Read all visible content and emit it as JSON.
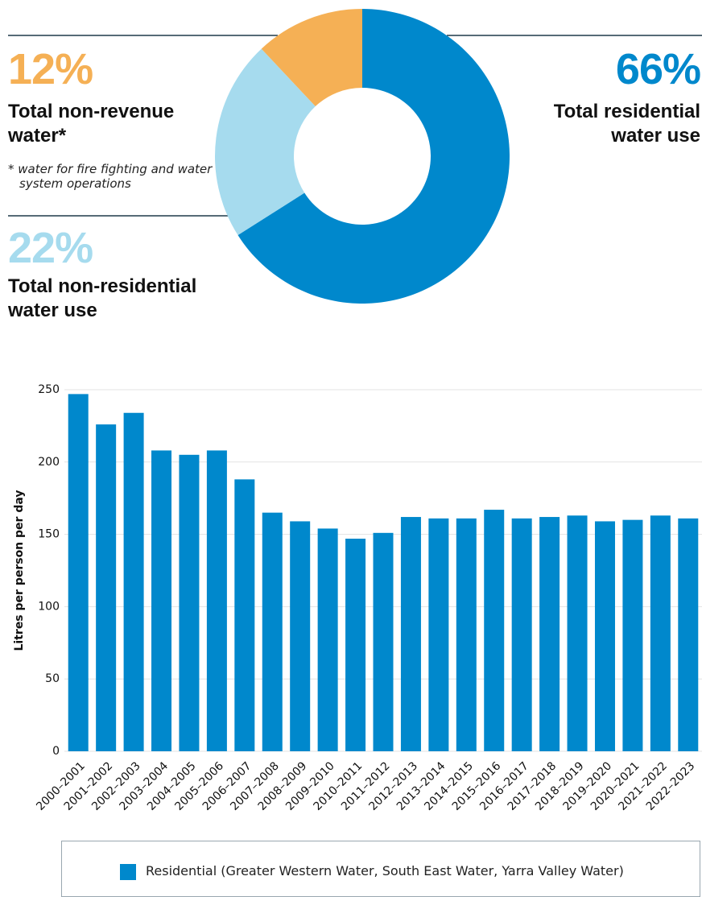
{
  "chart_data": [
    {
      "type": "donut",
      "categories": [
        "Total residential water use",
        "Total non-residential water use",
        "Total non-revenue water*"
      ],
      "values": [
        66,
        22,
        12
      ],
      "value_labels": [
        "66%",
        "22%",
        "12%"
      ],
      "colors": [
        "#0088cc",
        "#a6dbee",
        "#f5b055"
      ],
      "annotation": "* water for fire fighting and water system operations"
    },
    {
      "type": "bar",
      "ylabel": "Litres per person per day",
      "categories": [
        "2000–2001",
        "2001–2002",
        "2002–2003",
        "2003–2004",
        "2004–2005",
        "2005–2006",
        "2006–2007",
        "2007–2008",
        "2008–2009",
        "2009–2010",
        "2010–2011",
        "2011–2012",
        "2012–2013",
        "2013–2014",
        "2014–2015",
        "2015–2016",
        "2016–2017",
        "2017–2018",
        "2018–2019",
        "2019–2020",
        "2020–2021",
        "2021–2022",
        "2022–2023"
      ],
      "series": [
        {
          "name": "Residential (Greater Western Water, South East Water, Yarra Valley Water)",
          "color": "#0088cc",
          "values": [
            247,
            226,
            234,
            208,
            205,
            208,
            188,
            165,
            159,
            154,
            147,
            151,
            162,
            161,
            161,
            167,
            161,
            162,
            163,
            159,
            160,
            163,
            161
          ]
        }
      ],
      "ylim": [
        0,
        250
      ],
      "yticks": [
        0,
        50,
        100,
        150,
        200,
        250
      ],
      "grid": true
    }
  ]
}
